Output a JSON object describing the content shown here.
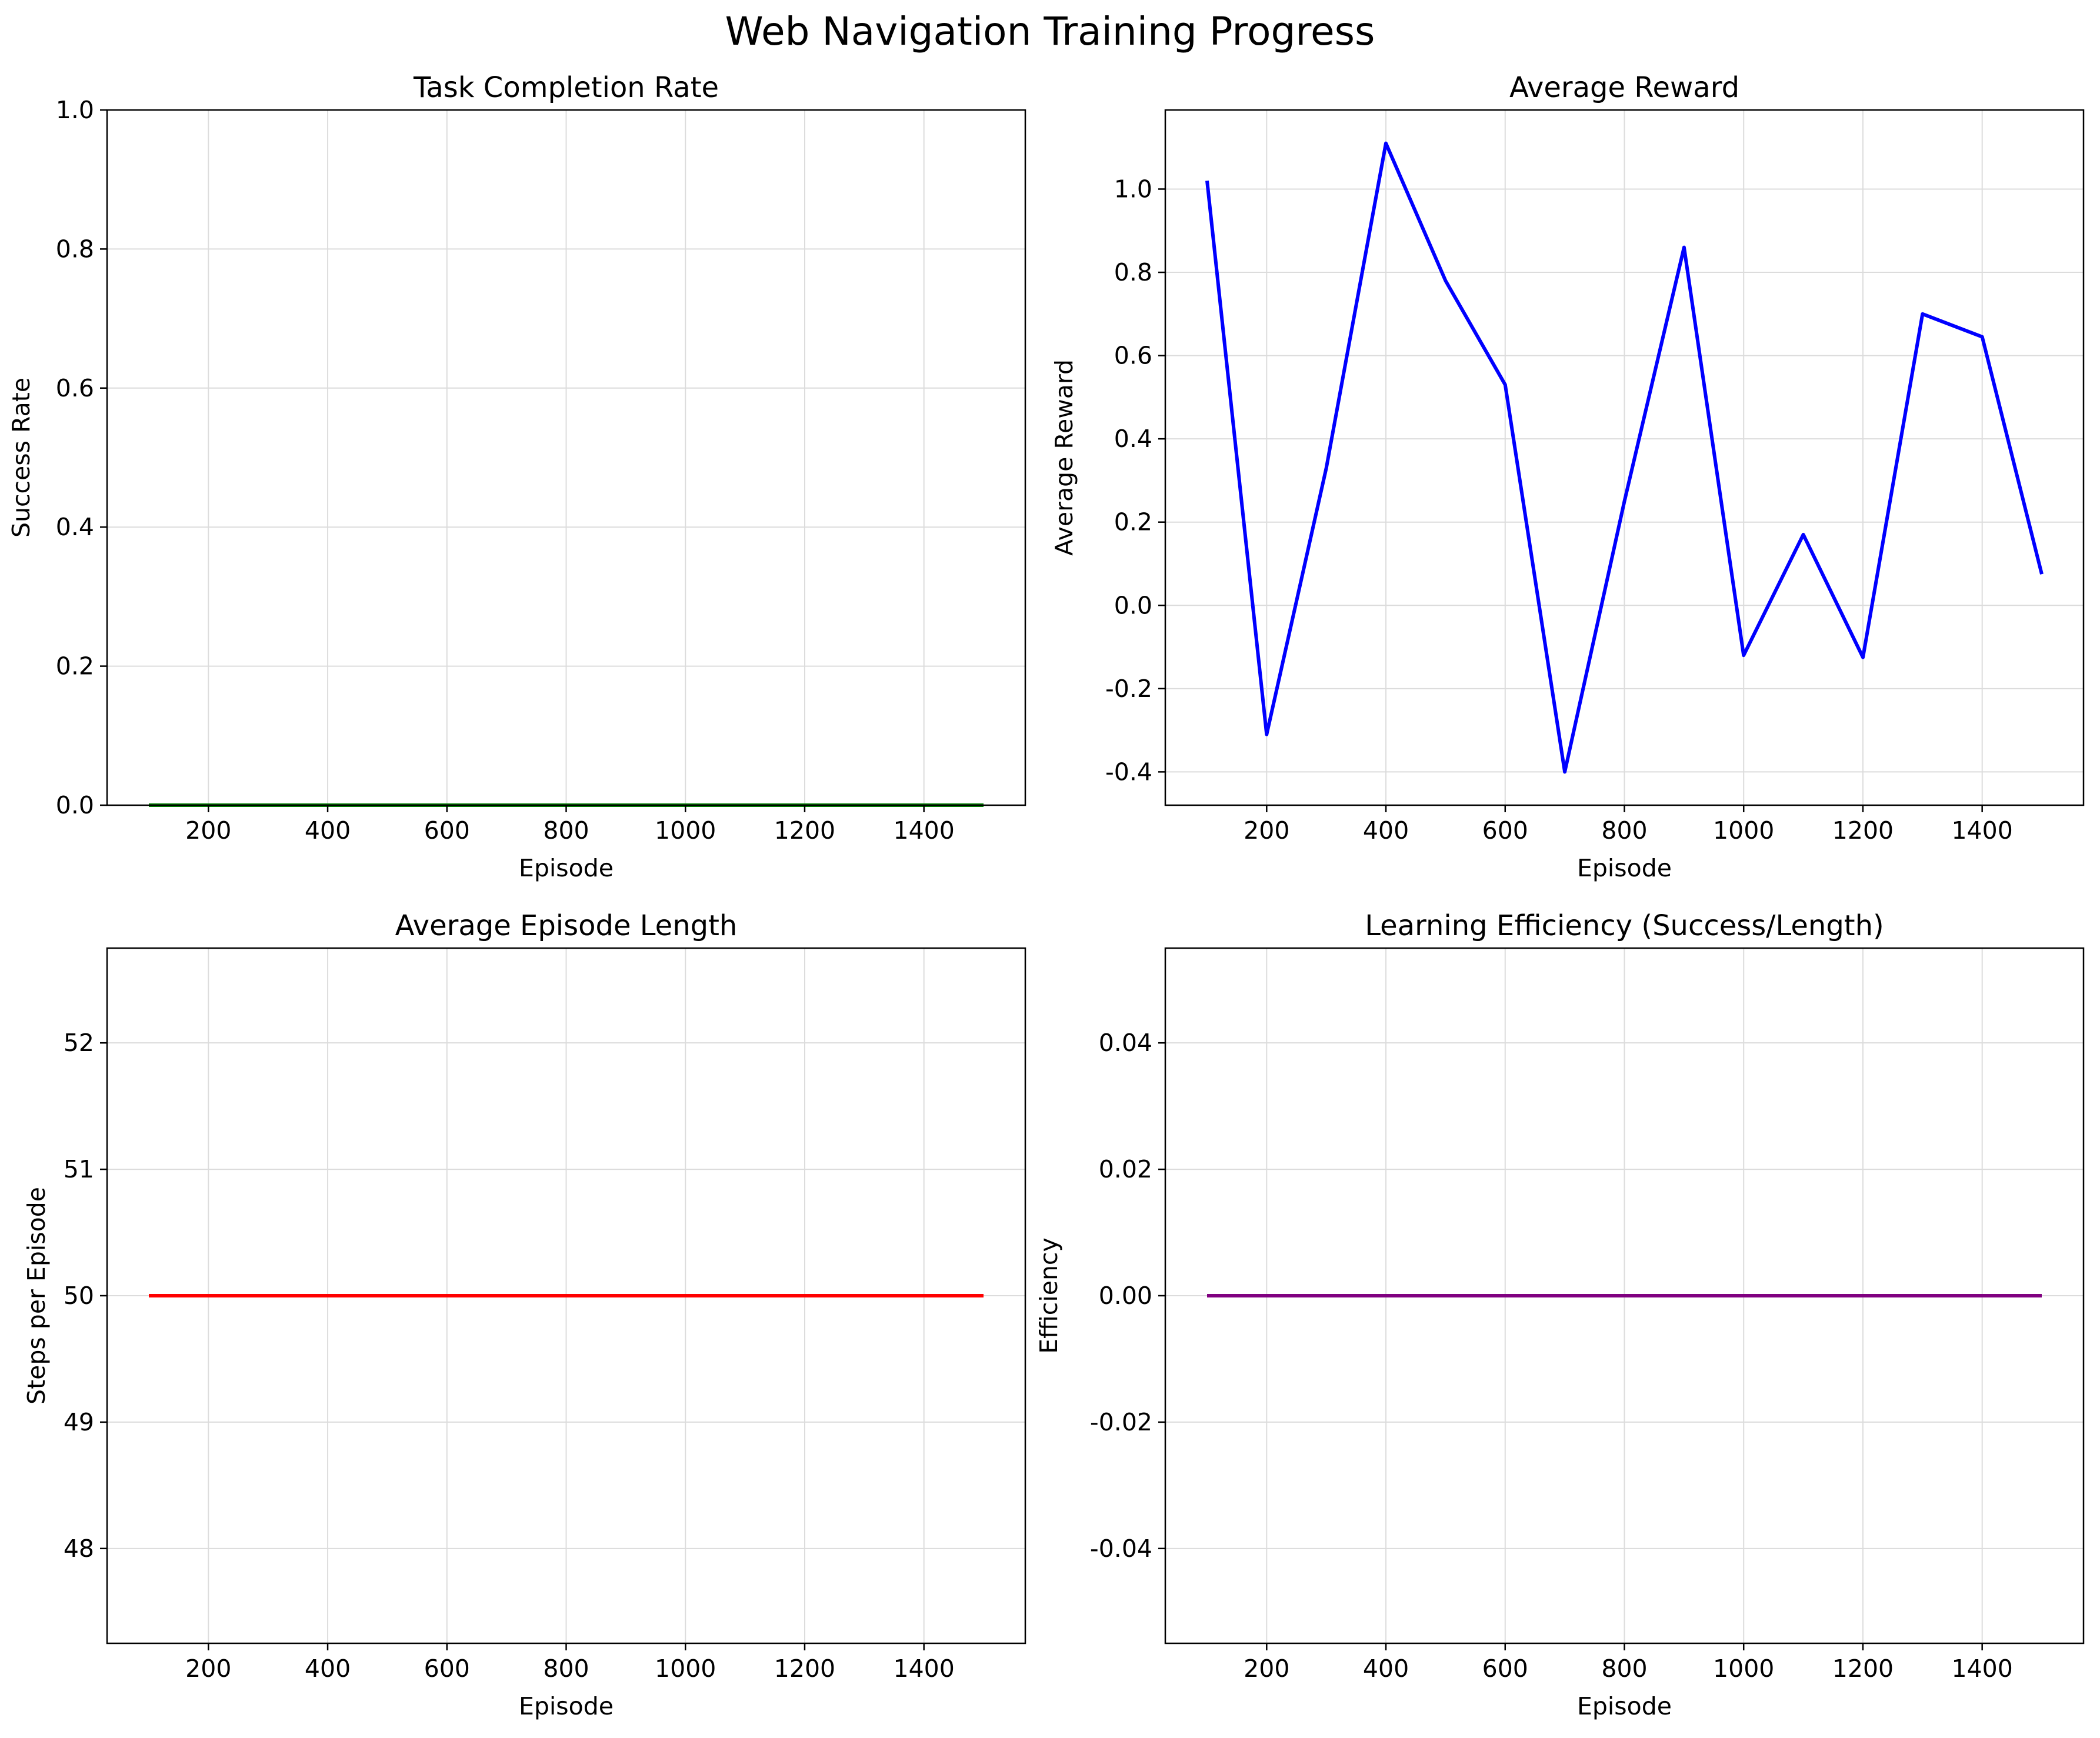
{
  "figure_title": "Web Navigation Training Progress",
  "chart_data": [
    {
      "type": "line",
      "title": "Task Completion Rate",
      "xlabel": "Episode",
      "ylabel": "Success Rate",
      "xlim": [
        30,
        1570
      ],
      "ylim": [
        0,
        1
      ],
      "xticks": [
        200,
        400,
        600,
        800,
        1000,
        1200,
        1400
      ],
      "yticks": [
        0,
        0.2,
        0.4,
        0.6,
        0.8,
        1.0
      ],
      "ytick_labels": [
        "0.0",
        "0.2",
        "0.4",
        "0.6",
        "0.8",
        "1.0"
      ],
      "grid": true,
      "series": [
        {
          "color": "#008000",
          "x": [
            100,
            200,
            300,
            400,
            500,
            600,
            700,
            800,
            900,
            1000,
            1100,
            1200,
            1300,
            1400,
            1500
          ],
          "y": [
            0,
            0,
            0,
            0,
            0,
            0,
            0,
            0,
            0,
            0,
            0,
            0,
            0,
            0,
            0
          ]
        }
      ]
    },
    {
      "type": "line",
      "title": "Average Reward",
      "xlabel": "Episode",
      "ylabel": "Average Reward",
      "xlim": [
        30,
        1570
      ],
      "ylim": [
        -0.48,
        1.19
      ],
      "xticks": [
        200,
        400,
        600,
        800,
        1000,
        1200,
        1400
      ],
      "yticks": [
        -0.4,
        -0.2,
        0.0,
        0.2,
        0.4,
        0.6,
        0.8,
        1.0
      ],
      "ytick_labels": [
        "-0.4",
        "-0.2",
        "0.0",
        "0.2",
        "0.4",
        "0.6",
        "0.8",
        "1.0"
      ],
      "grid": true,
      "series": [
        {
          "color": "#0000ff",
          "x": [
            100,
            200,
            300,
            400,
            500,
            600,
            700,
            800,
            900,
            1000,
            1100,
            1200,
            1300,
            1400,
            1500
          ],
          "y": [
            1.02,
            -0.31,
            0.33,
            1.11,
            0.78,
            0.53,
            -0.4,
            0.25,
            0.86,
            -0.12,
            0.17,
            -0.125,
            0.7,
            0.645,
            0.075
          ]
        }
      ]
    },
    {
      "type": "line",
      "title": "Average Episode Length",
      "xlabel": "Episode",
      "ylabel": "Steps per Episode",
      "xlim": [
        30,
        1570
      ],
      "ylim": [
        47.25,
        52.75
      ],
      "xticks": [
        200,
        400,
        600,
        800,
        1000,
        1200,
        1400
      ],
      "yticks": [
        48,
        49,
        50,
        51,
        52
      ],
      "ytick_labels": [
        "48",
        "49",
        "50",
        "51",
        "52"
      ],
      "grid": true,
      "series": [
        {
          "color": "#ff0000",
          "x": [
            100,
            200,
            300,
            400,
            500,
            600,
            700,
            800,
            900,
            1000,
            1100,
            1200,
            1300,
            1400,
            1500
          ],
          "y": [
            50,
            50,
            50,
            50,
            50,
            50,
            50,
            50,
            50,
            50,
            50,
            50,
            50,
            50,
            50
          ]
        }
      ]
    },
    {
      "type": "line",
      "title": "Learning Efficiency (Success/Length)",
      "xlabel": "Episode",
      "ylabel": "Efficiency",
      "xlim": [
        30,
        1570
      ],
      "ylim": [
        -0.055,
        0.055
      ],
      "xticks": [
        200,
        400,
        600,
        800,
        1000,
        1200,
        1400
      ],
      "yticks": [
        -0.04,
        -0.02,
        0.0,
        0.02,
        0.04
      ],
      "ytick_labels": [
        "-0.04",
        "-0.02",
        "0.00",
        "0.02",
        "0.04"
      ],
      "grid": true,
      "series": [
        {
          "color": "#800080",
          "x": [
            100,
            200,
            300,
            400,
            500,
            600,
            700,
            800,
            900,
            1000,
            1100,
            1200,
            1300,
            1400,
            1500
          ],
          "y": [
            0,
            0,
            0,
            0,
            0,
            0,
            0,
            0,
            0,
            0,
            0,
            0,
            0,
            0,
            0
          ]
        }
      ]
    }
  ]
}
